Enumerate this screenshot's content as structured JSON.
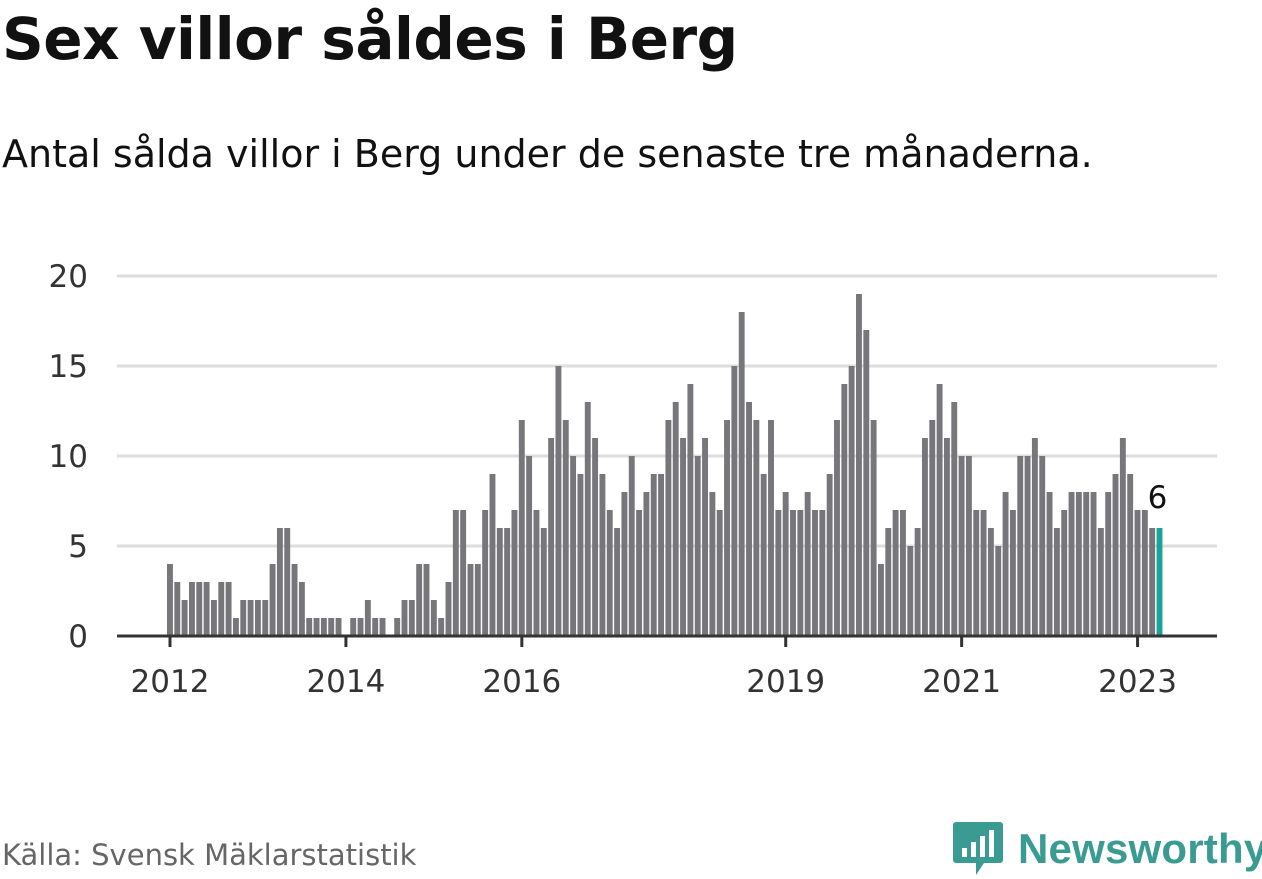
{
  "title": "Sex villor såldes i Berg",
  "subtitle": "Antal sålda villor i Berg under de senaste tre månaderna.",
  "source": "Källa: Svensk Mäklarstatistik",
  "brand": {
    "name": "Newsworthy",
    "icon": "newsworthy-logo-icon",
    "color": "#3a9b93"
  },
  "colors": {
    "bar": "#77767b",
    "highlight": "#1aa39b",
    "grid": "#dddddd",
    "axis": "#333333"
  },
  "chart_data": {
    "type": "bar",
    "title": "Sex villor såldes i Berg",
    "subtitle": "Antal sålda villor i Berg under de senaste tre månaderna.",
    "xlabel": "",
    "ylabel": "",
    "ylim": [
      0,
      20
    ],
    "yticks": [
      0,
      5,
      10,
      15,
      20
    ],
    "xticks": [
      {
        "label": "2012",
        "index": 0
      },
      {
        "label": "2014",
        "index": 24
      },
      {
        "label": "2016",
        "index": 48
      },
      {
        "label": "2019",
        "index": 84
      },
      {
        "label": "2021",
        "index": 108
      },
      {
        "label": "2023",
        "index": 132
      }
    ],
    "grid": true,
    "legend": "none",
    "first_period": "2012-01",
    "last_period": "2023-04",
    "values": [
      4,
      3,
      2,
      3,
      3,
      3,
      2,
      3,
      3,
      1,
      2,
      2,
      2,
      2,
      4,
      6,
      6,
      4,
      3,
      1,
      1,
      1,
      1,
      1,
      0,
      1,
      1,
      2,
      1,
      1,
      0,
      1,
      2,
      2,
      4,
      4,
      2,
      1,
      3,
      7,
      7,
      4,
      4,
      7,
      9,
      6,
      6,
      7,
      12,
      10,
      7,
      6,
      11,
      15,
      12,
      10,
      9,
      13,
      11,
      9,
      7,
      6,
      8,
      10,
      7,
      8,
      9,
      9,
      12,
      13,
      11,
      14,
      10,
      11,
      8,
      7,
      12,
      15,
      18,
      13,
      12,
      9,
      12,
      7,
      8,
      7,
      7,
      8,
      7,
      7,
      9,
      12,
      14,
      15,
      19,
      17,
      12,
      4,
      6,
      7,
      7,
      5,
      6,
      11,
      12,
      14,
      11,
      13,
      10,
      10,
      7,
      7,
      6,
      5,
      8,
      7,
      10,
      10,
      11,
      10,
      8,
      6,
      7,
      8,
      8,
      8,
      8,
      6,
      8,
      9,
      11,
      9,
      7,
      7,
      6,
      6
    ],
    "highlight_index": 135,
    "data_label": "6"
  }
}
